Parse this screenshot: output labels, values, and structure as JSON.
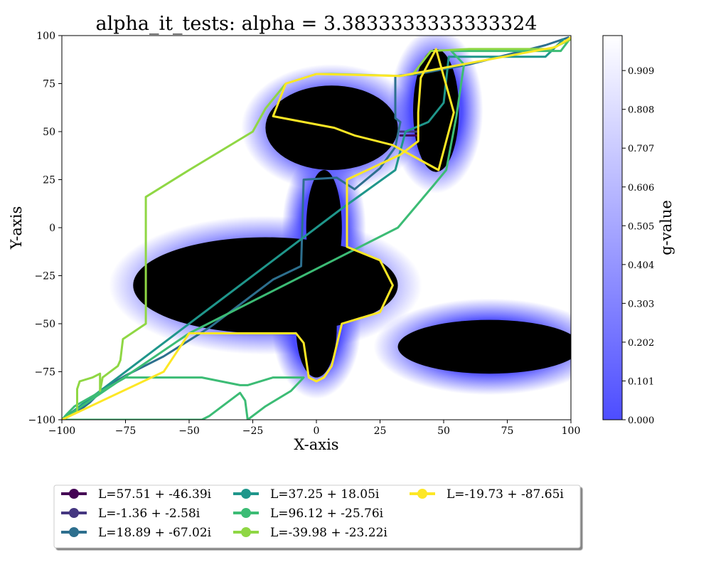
{
  "chart_data": {
    "type": "line",
    "title": "alpha_it_tests: alpha = 3.3833333333333324",
    "xlabel": "X-axis",
    "ylabel": "Y-axis",
    "xlim": [
      -100,
      100
    ],
    "ylim": [
      -100,
      100
    ],
    "xticks": [
      -100,
      -75,
      -50,
      -25,
      0,
      25,
      50,
      75,
      100
    ],
    "yticks": [
      -100,
      -75,
      -50,
      -25,
      0,
      25,
      50,
      75,
      100
    ],
    "grid": false,
    "legend_position": "below plot, three columns",
    "colorbar": {
      "label": "g-value",
      "range": [
        0.0,
        1.0
      ],
      "ticks": [
        "0.000",
        "0.101",
        "0.202",
        "0.303",
        "0.404",
        "0.505",
        "0.606",
        "0.707",
        "0.808",
        "0.909"
      ],
      "colors": {
        "low": "#4d4dff",
        "high": "#ffffff"
      }
    },
    "obstacles": [
      {
        "shape": "ellipse",
        "cx": 6,
        "cy": 52,
        "rx": 26,
        "ry": 22
      },
      {
        "shape": "ellipse",
        "cx": 47,
        "cy": 61,
        "rx": 9,
        "ry": 32
      },
      {
        "shape": "ellipse",
        "cx": -20,
        "cy": -30,
        "rx": 52,
        "ry": 25
      },
      {
        "shape": "ellipse",
        "cx": 0,
        "cy": -52,
        "rx": 8,
        "ry": 26
      },
      {
        "shape": "ellipse",
        "cx": 3,
        "cy": 0,
        "rx": 7,
        "ry": 30
      },
      {
        "shape": "ellipse",
        "cx": 68,
        "cy": -62,
        "rx": 36,
        "ry": 14
      }
    ],
    "series": [
      {
        "name": "L=57.51 + -46.39i",
        "color": "#440154",
        "points": [
          [
            33,
            48
          ],
          [
            40,
            48
          ]
        ]
      },
      {
        "name": "L=-1.36 + -2.58i",
        "color": "#453781",
        "points": [
          [
            33,
            50
          ],
          [
            40,
            50
          ]
        ]
      },
      {
        "name": "L=18.89 + -67.02i",
        "color": "#2d6f8e",
        "points": [
          [
            -100,
            -100
          ],
          [
            -96,
            -97
          ],
          [
            -92,
            -94
          ],
          [
            -89,
            -91
          ],
          [
            -86,
            -87
          ],
          [
            -84,
            -84
          ],
          [
            -75,
            -77
          ],
          [
            -60,
            -67
          ],
          [
            -42,
            -52
          ],
          [
            -30,
            -40
          ],
          [
            -17,
            -27
          ],
          [
            -6,
            -20
          ],
          [
            -5,
            25
          ],
          [
            8,
            26
          ],
          [
            15,
            20
          ],
          [
            25,
            31
          ],
          [
            31,
            42
          ],
          [
            33,
            55
          ],
          [
            31,
            57
          ],
          [
            31,
            79
          ],
          [
            40,
            80
          ],
          [
            60,
            85
          ],
          [
            90,
            95
          ],
          [
            99,
            99
          ]
        ]
      },
      {
        "name": "L=37.25 + 18.05i",
        "color": "#1f968b",
        "points": [
          [
            -100,
            -100
          ],
          [
            -40,
            -40
          ],
          [
            10,
            10
          ],
          [
            31,
            30
          ],
          [
            33,
            40
          ],
          [
            35,
            50
          ],
          [
            44,
            55
          ],
          [
            50,
            65
          ],
          [
            52,
            89
          ],
          [
            90,
            89
          ],
          [
            97,
            98
          ]
        ]
      },
      {
        "name": "L=96.12 + -25.76i",
        "color": "#3cbc75",
        "points": [
          [
            -100,
            -100
          ],
          [
            -45,
            -100
          ],
          [
            -42,
            -98
          ],
          [
            -30,
            -86
          ],
          [
            -28,
            -90
          ],
          [
            -27,
            -100
          ],
          [
            -20,
            -93
          ],
          [
            -10,
            -85
          ],
          [
            -5,
            -78
          ],
          [
            -17,
            -78
          ],
          [
            -27,
            -82
          ],
          [
            -30,
            -82
          ],
          [
            -45,
            -78
          ],
          [
            -75,
            -78
          ],
          [
            -95,
            -93
          ],
          [
            -98,
            -97
          ],
          [
            -100,
            -100
          ],
          [
            -50,
            -55
          ],
          [
            32,
            0
          ],
          [
            46,
            22
          ],
          [
            51,
            30
          ],
          [
            55,
            58
          ],
          [
            58,
            85
          ],
          [
            53,
            92
          ],
          [
            61,
            92
          ],
          [
            96,
            92
          ],
          [
            100,
            99
          ]
        ]
      },
      {
        "name": "L=-39.98 + -23.22i",
        "color": "#8fd744",
        "points": [
          [
            -100,
            -100
          ],
          [
            -94,
            -96
          ],
          [
            -94,
            -84
          ],
          [
            -93,
            -80
          ],
          [
            -88,
            -78
          ],
          [
            -85,
            -76
          ],
          [
            -85,
            -85
          ],
          [
            -84,
            -78
          ],
          [
            -78,
            -72
          ],
          [
            -77,
            -69
          ],
          [
            -76,
            -58
          ],
          [
            -67,
            -50
          ],
          [
            -67,
            -45
          ],
          [
            -67,
            16
          ],
          [
            -50,
            30
          ],
          [
            -25,
            50
          ],
          [
            -20,
            62
          ],
          [
            -12,
            75
          ],
          [
            0,
            80
          ],
          [
            6,
            80
          ],
          [
            33,
            79
          ],
          [
            38,
            80
          ],
          [
            45,
            92
          ],
          [
            60,
            93
          ],
          [
            92,
            93
          ],
          [
            100,
            98
          ]
        ]
      },
      {
        "name": "L=-19.73 + -87.65i",
        "color": "#fde725",
        "points": [
          [
            -100,
            -100
          ],
          [
            -60,
            -75
          ],
          [
            -50,
            -55
          ],
          [
            -22,
            -55
          ],
          [
            -8,
            -55
          ],
          [
            -5,
            -60
          ],
          [
            -3,
            -78
          ],
          [
            0,
            -80
          ],
          [
            3,
            -78
          ],
          [
            6,
            -72
          ],
          [
            10,
            -50
          ],
          [
            25,
            -44
          ],
          [
            30,
            -30
          ],
          [
            25,
            -17
          ],
          [
            12,
            -10
          ],
          [
            12,
            25
          ],
          [
            33,
            38
          ],
          [
            40,
            45
          ],
          [
            40,
            60
          ],
          [
            41,
            78
          ],
          [
            47,
            93
          ],
          [
            54,
            60
          ],
          [
            48,
            30
          ],
          [
            30,
            43
          ],
          [
            15,
            48
          ],
          [
            7,
            52
          ],
          [
            -17,
            58
          ],
          [
            -12,
            75
          ],
          [
            0,
            80
          ],
          [
            33,
            79
          ],
          [
            94,
            94
          ],
          [
            100,
            99
          ]
        ]
      }
    ]
  }
}
